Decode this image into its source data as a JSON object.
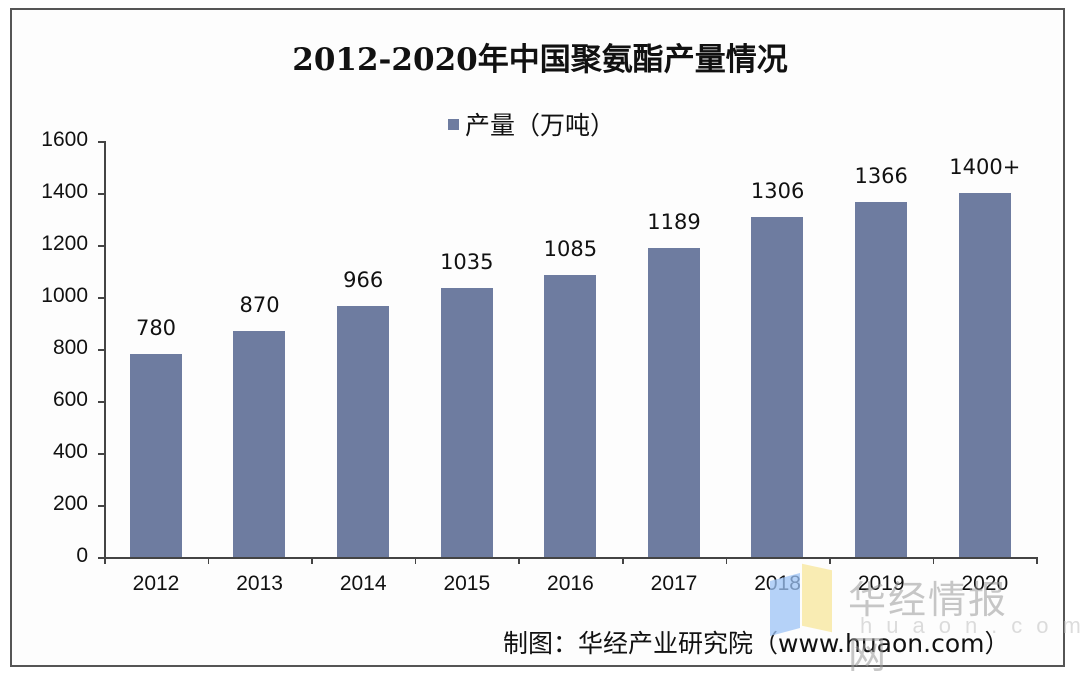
{
  "title": "2012-2020年中国聚氨酯产量情况",
  "legend": {
    "label": "产量（万吨）",
    "color": "#6E7CA0"
  },
  "footer": "制图：华经产业研究院（www.huaon.com）",
  "watermark": {
    "text": "华经情报网",
    "sub": "huaon.com"
  },
  "yaxis": {
    "ticks": [
      "0",
      "200",
      "400",
      "600",
      "800",
      "1000",
      "1200",
      "1400",
      "1600"
    ]
  },
  "bars": [
    {
      "year": "2012",
      "value": 780,
      "label": "780"
    },
    {
      "year": "2013",
      "value": 870,
      "label": "870"
    },
    {
      "year": "2014",
      "value": 966,
      "label": "966"
    },
    {
      "year": "2015",
      "value": 1035,
      "label": "1035"
    },
    {
      "year": "2016",
      "value": 1085,
      "label": "1085"
    },
    {
      "year": "2017",
      "value": 1189,
      "label": "1189"
    },
    {
      "year": "2018",
      "value": 1306,
      "label": "1306"
    },
    {
      "year": "2019",
      "value": 1366,
      "label": "1366"
    },
    {
      "year": "2020",
      "value": 1400,
      "label": "1400+"
    }
  ],
  "chart_data": {
    "type": "bar",
    "title": "2012-2020年中国聚氨酯产量情况",
    "categories": [
      "2012",
      "2013",
      "2014",
      "2015",
      "2016",
      "2017",
      "2018",
      "2019",
      "2020"
    ],
    "series": [
      {
        "name": "产量（万吨）",
        "values": [
          780,
          870,
          966,
          1035,
          1085,
          1189,
          1306,
          1366,
          1400
        ],
        "data_labels": [
          "780",
          "870",
          "966",
          "1035",
          "1085",
          "1189",
          "1306",
          "1366",
          "1400+"
        ],
        "color": "#6E7CA0"
      }
    ],
    "xlabel": "",
    "ylabel": "",
    "ylim": [
      0,
      1600
    ],
    "yticks": [
      0,
      200,
      400,
      600,
      800,
      1000,
      1200,
      1400,
      1600
    ],
    "grid": false,
    "legend_position": "top",
    "annotations": [
      "制图：华经产业研究院（www.huaon.com）"
    ]
  }
}
